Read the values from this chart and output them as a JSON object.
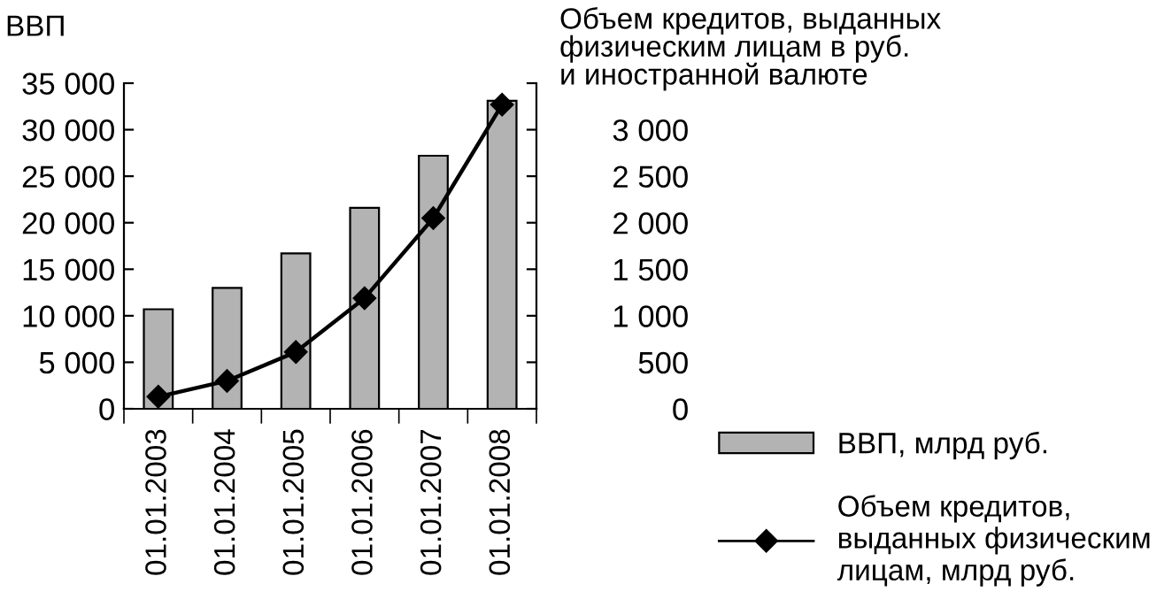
{
  "chart_data": {
    "type": "bar",
    "ylabel": "ВВП",
    "y2label": "Объем кредитов, выданных\nфизическим лицам в руб.\nи иностранной валюте",
    "categories": [
      "01.01.2003",
      "01.01.2004",
      "01.01.2005",
      "01.01.2006",
      "01.01.2007",
      "01.01.2008"
    ],
    "series": [
      {
        "name": "ВВП, млрд руб.",
        "color": "#b3b3b3",
        "values": [
          10700,
          13000,
          16700,
          21600,
          27200,
          33100
        ]
      },
      {
        "name": "Объем кредитов,\nвыданных физическим\nлицам, млрд руб.",
        "type": "line",
        "axis": "y2",
        "color": "#000000",
        "marker": "diamond",
        "values": [
          130,
          300,
          610,
          1190,
          2050,
          3270
        ]
      }
    ],
    "ylim": [
      0,
      35000
    ],
    "yticks": [
      {
        "value": 0,
        "label": "0"
      },
      {
        "value": 5000,
        "label": "5 000"
      },
      {
        "value": 10000,
        "label": "10 000"
      },
      {
        "value": 15000,
        "label": "15 000"
      },
      {
        "value": 20000,
        "label": "20 000"
      },
      {
        "value": 25000,
        "label": "25 000"
      },
      {
        "value": 30000,
        "label": "30 000"
      },
      {
        "value": 35000,
        "label": "35 000"
      }
    ],
    "y2lim": [
      0,
      3500
    ],
    "y2ticks": [
      {
        "value": 0,
        "label": "0"
      },
      {
        "value": 500,
        "label": "500"
      },
      {
        "value": 1000,
        "label": "1 000"
      },
      {
        "value": 1500,
        "label": "1 500"
      },
      {
        "value": 2000,
        "label": "2 000"
      },
      {
        "value": 2500,
        "label": "2 500"
      },
      {
        "value": 3000,
        "label": "3 000"
      },
      {
        "value": 3500,
        "label": null
      }
    ],
    "legend": "bottom right",
    "grid": false
  }
}
